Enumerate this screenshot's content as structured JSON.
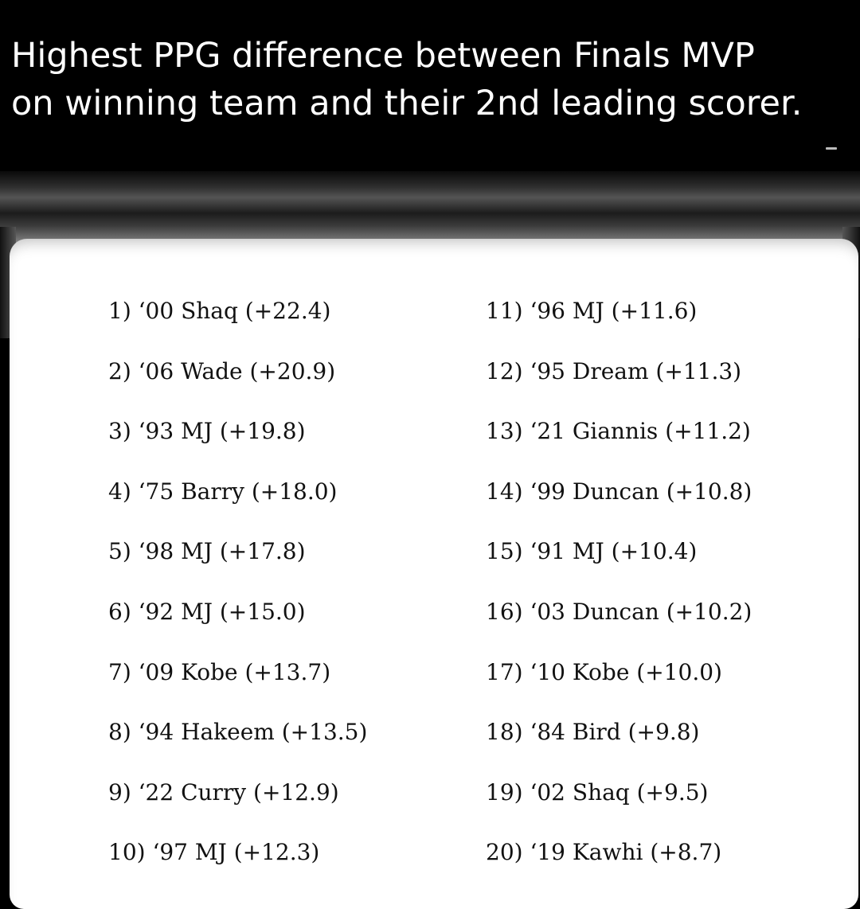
{
  "headline": {
    "line1": "Highest PPG difference between Finals MVP",
    "line2": "on winning team and their 2nd leading scorer."
  },
  "rankings": {
    "left_column": [
      "1) ‘00 Shaq (+22.4)",
      "2) ‘06 Wade (+20.9)",
      "3) ‘93 MJ (+19.8)",
      "4) ‘75 Barry (+18.0)",
      "5) ‘98 MJ (+17.8)",
      "6) ‘92 MJ (+15.0)",
      "7) ‘09 Kobe (+13.7)",
      "8) ‘94 Hakeem (+13.5)",
      "9) ‘22 Curry (+12.9)",
      "10) ‘97 MJ (+12.3)"
    ],
    "right_column": [
      "11) ‘96 MJ (+11.6)",
      "12) ‘95 Dream (+11.3)",
      "13) ‘21 Giannis (+11.2)",
      "14) ‘99 Duncan (+10.8)",
      "15) ‘91 MJ (+10.4)",
      "16) ‘03 Duncan (+10.2)",
      "17) ‘10 Kobe (+10.0)",
      "18) ‘84 Bird (+9.8)",
      "19) ‘02 Shaq (+9.5)",
      "20) ‘19 Kawhi (+8.7)"
    ]
  }
}
